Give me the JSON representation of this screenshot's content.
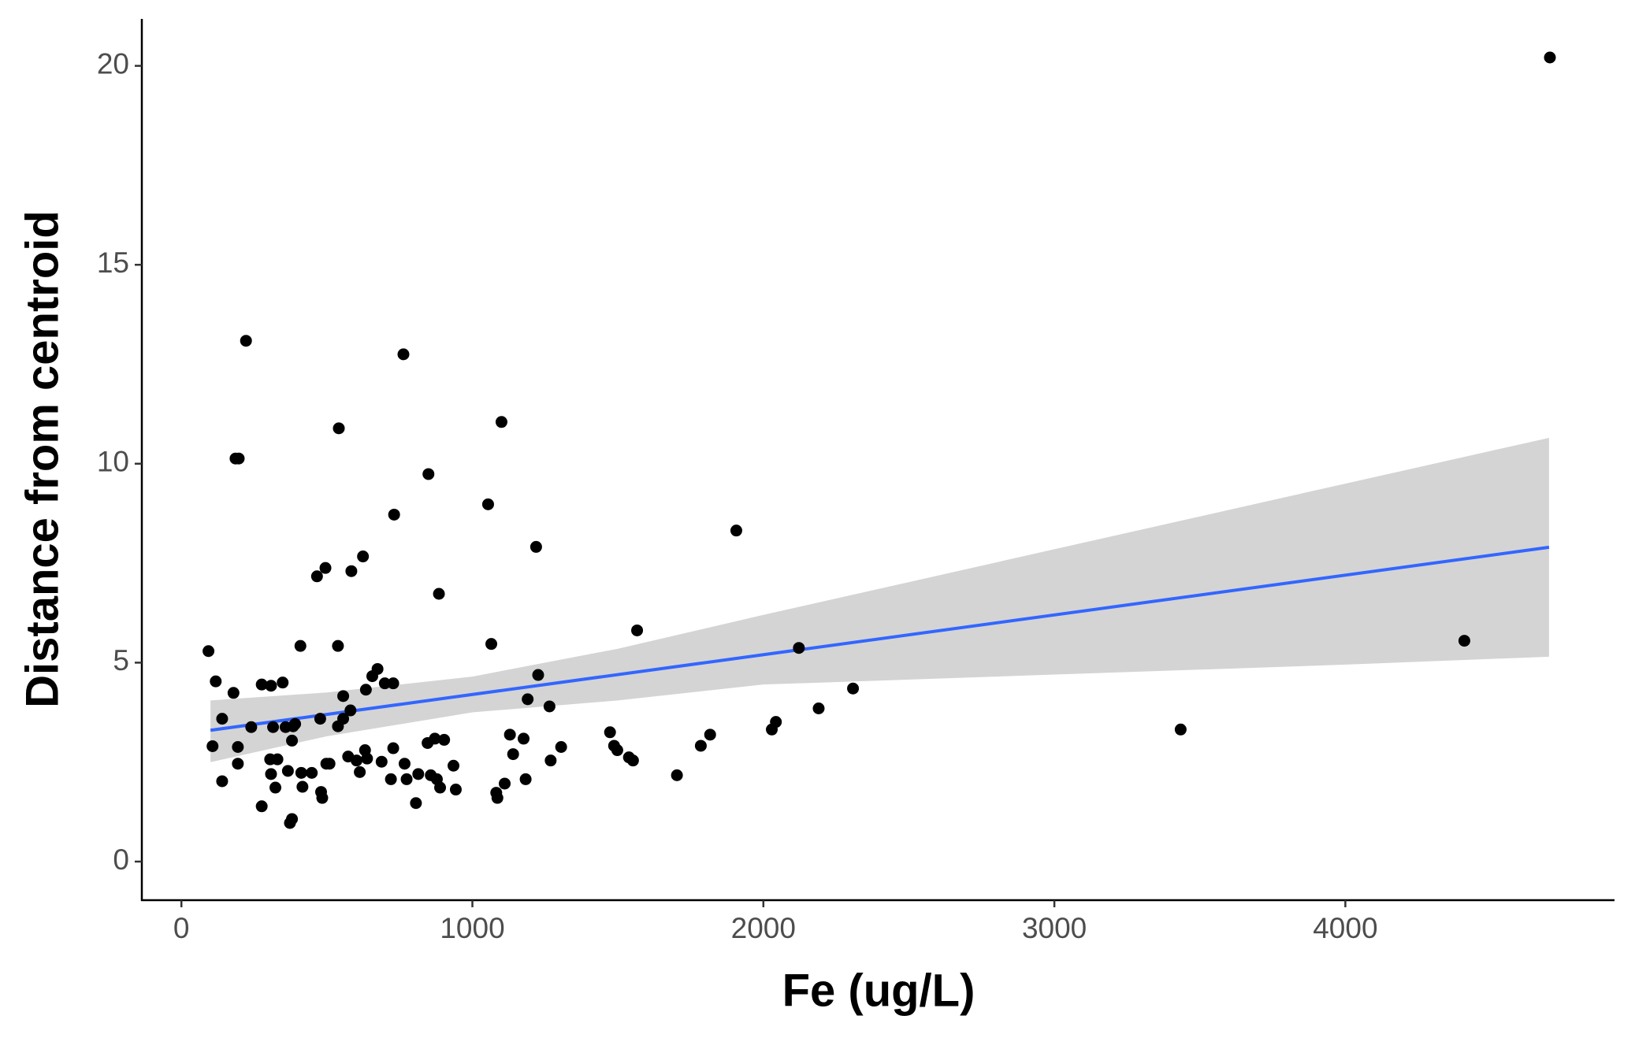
{
  "chart_data": {
    "type": "scatter",
    "xlabel": "Fe (ug/L)",
    "ylabel": "Distance from centroid",
    "xlim": [
      -136,
      4925
    ],
    "ylim": [
      -0.97,
      21.18
    ],
    "xticks": [
      0,
      1000,
      2000,
      3000,
      4000
    ],
    "yticks": [
      0,
      5,
      10,
      15,
      20
    ],
    "point_color": "#000000",
    "line_color": "#3366ff",
    "band_color": "#d4d4d4",
    "series": [
      {
        "x": [
          93,
          107,
          118,
          140,
          140,
          179,
          186,
          197,
          194,
          194,
          222,
          240,
          276,
          276,
          305,
          308,
          308,
          315,
          323,
          330,
          348,
          358,
          366,
          373,
          380,
          380,
          384,
          391,
          409,
          412,
          416,
          448,
          466,
          477,
          480,
          484,
          495,
          498,
          509,
          538,
          541,
          538,
          556,
          556,
          581,
          584,
          573,
          602,
          613,
          624,
          631,
          634,
          638,
          656,
          674,
          688,
          699,
          720,
          728,
          728,
          731,
          763,
          767,
          774,
          806,
          814,
          846,
          849,
          857,
          871,
          878,
          885,
          889,
          903,
          935,
          943,
          1054,
          1065,
          1082,
          1086,
          1100,
          1111,
          1129,
          1140,
          1176,
          1183,
          1190,
          1219,
          1226,
          1265,
          1269,
          1305,
          1473,
          1487,
          1498,
          1538,
          1552,
          1566,
          1703,
          1785,
          1817,
          1907,
          2029,
          2043,
          2122,
          2190,
          2308,
          3434,
          4409,
          4703
        ],
        "values": [
          5.29,
          2.9,
          4.53,
          3.59,
          2.02,
          4.24,
          10.13,
          10.13,
          2.88,
          2.46,
          13.09,
          3.38,
          4.45,
          1.39,
          2.57,
          4.42,
          2.2,
          3.38,
          1.86,
          2.57,
          4.5,
          3.38,
          2.28,
          0.97,
          1.07,
          3.04,
          3.4,
          3.46,
          5.42,
          2.23,
          1.88,
          2.23,
          7.17,
          3.59,
          1.75,
          1.6,
          7.38,
          2.46,
          2.46,
          5.42,
          10.89,
          3.4,
          3.59,
          4.16,
          3.8,
          7.3,
          2.64,
          2.54,
          2.25,
          7.67,
          2.8,
          4.32,
          2.59,
          4.66,
          4.84,
          2.51,
          4.48,
          2.07,
          4.48,
          2.85,
          8.72,
          12.75,
          2.46,
          2.07,
          1.47,
          2.2,
          2.98,
          9.74,
          2.17,
          3.09,
          2.07,
          6.73,
          1.86,
          3.06,
          2.41,
          1.81,
          8.98,
          5.47,
          1.73,
          1.6,
          11.05,
          1.96,
          3.19,
          2.7,
          3.09,
          2.07,
          4.08,
          7.91,
          4.69,
          3.9,
          2.54,
          2.88,
          3.25,
          2.91,
          2.8,
          2.62,
          2.54,
          5.81,
          2.17,
          2.91,
          3.19,
          8.32,
          3.32,
          3.51,
          5.37,
          3.85,
          4.35,
          3.32,
          5.55,
          20.21
        ]
      }
    ],
    "fit": {
      "x": [
        100,
        4700
      ],
      "values": [
        3.3,
        7.9
      ]
    },
    "band": {
      "x": [
        100,
        500,
        1000,
        1500,
        2000,
        3000,
        4000,
        4700
      ],
      "lower": [
        2.5,
        3.15,
        3.75,
        4.05,
        4.45,
        4.7,
        4.95,
        5.15
      ],
      "upper": [
        4.05,
        4.25,
        4.65,
        5.35,
        6.2,
        7.85,
        9.5,
        10.65
      ]
    }
  }
}
